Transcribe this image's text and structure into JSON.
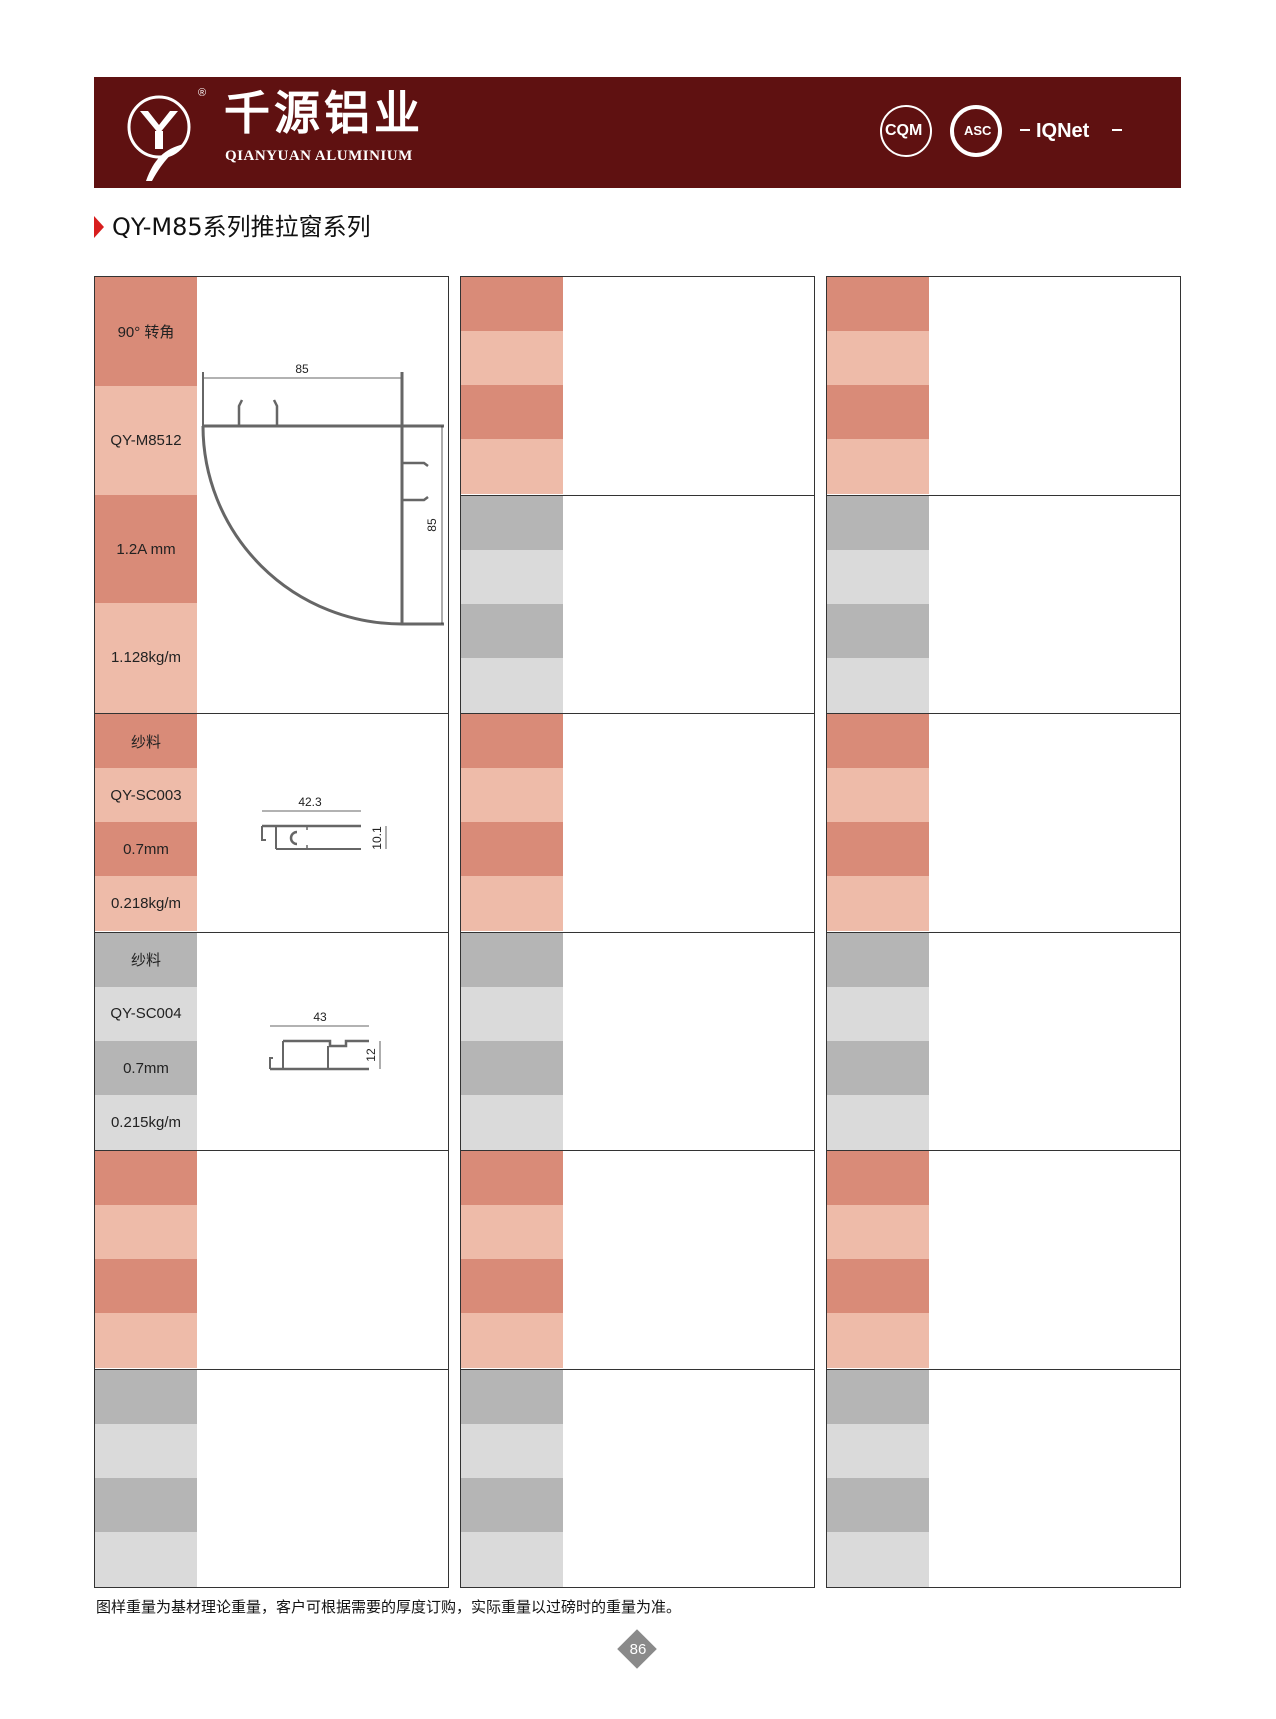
{
  "header": {
    "brand_cn": "千源铝业",
    "brand_en": "QIANYUAN ALUMINIUM",
    "registered_mark": "®",
    "certifications": [
      "CQM",
      "ASC",
      "IQNet"
    ],
    "background_color": "#5f1111"
  },
  "title": "QY-M85系列推拉窗系列",
  "colors": {
    "salmon_dark": "#d98b78",
    "salmon_light": "#eebba9",
    "gray_dark": "#b5b5b5",
    "gray_light": "#dadada",
    "accent_red": "#d81e1e"
  },
  "products": [
    {
      "name": "90° 转角",
      "code": "QY-M8512",
      "thickness": "1.2A mm",
      "weight": "1.128kg/m",
      "dims": [
        "85",
        "85"
      ]
    },
    {
      "name": "纱料",
      "code": "QY-SC003",
      "thickness": "0.7mm",
      "weight": "0.218kg/m",
      "dims": [
        "42.3",
        "10.1"
      ]
    },
    {
      "name": "纱料",
      "code": "QY-SC004",
      "thickness": "0.7mm",
      "weight": "0.215kg/m",
      "dims": [
        "43",
        "12"
      ]
    }
  ],
  "footnote": "图样重量为基材理论重量，客户可根据需要的厚度订购，实际重量以过磅时的重量为准。",
  "page_number": "86"
}
